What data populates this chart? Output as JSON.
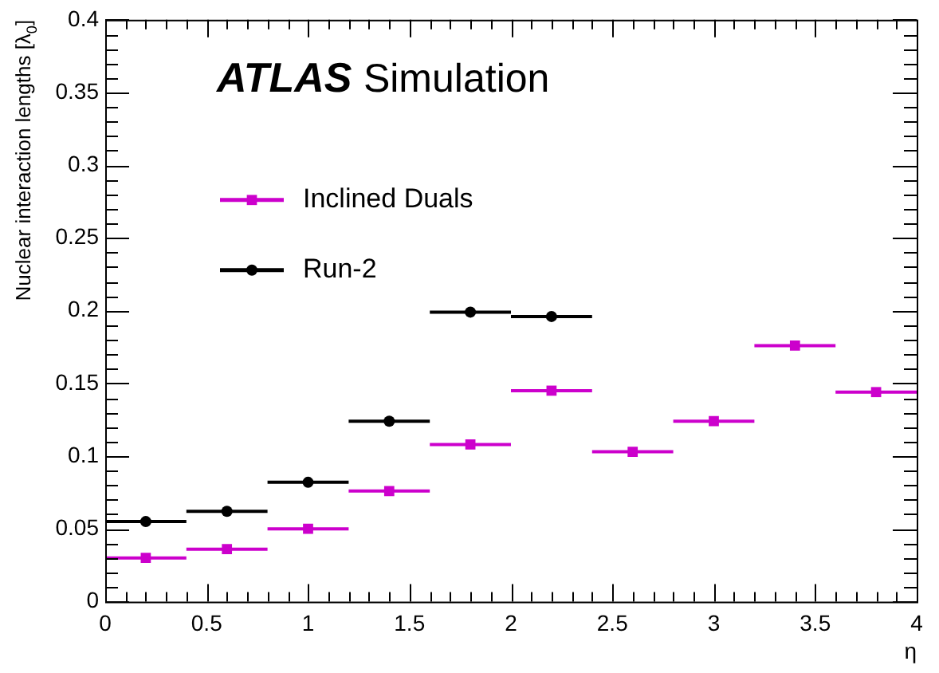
{
  "chart_data": {
    "type": "scatter",
    "xlabel": "η",
    "ylabel": "Nuclear interaction lengths [λ$_{0}$]",
    "annotations": [
      "ATLAS Simulation"
    ],
    "xlim": [
      0,
      4
    ],
    "xticks": [
      0,
      0.5,
      1,
      1.5,
      2,
      2.5,
      3,
      3.5,
      4
    ],
    "ylim": [
      0,
      0.4
    ],
    "yticks": [
      0,
      0.05,
      0.1,
      0.15,
      0.2,
      0.25,
      0.3,
      0.35,
      0.4
    ],
    "legend": "top left",
    "grid": false,
    "series": [
      {
        "name": "Inclined Duals",
        "color": "#cc00cc",
        "marker": "square",
        "x": [
          0.2,
          0.6,
          1.0,
          1.4,
          1.8,
          2.2,
          2.6,
          3.0,
          3.4,
          3.8
        ],
        "values": [
          0.03,
          0.036,
          0.05,
          0.076,
          0.108,
          0.145,
          0.103,
          0.124,
          0.176,
          0.144
        ],
        "xerrors": [
          0.2,
          0.2,
          0.2,
          0.2,
          0.2,
          0.2,
          0.2,
          0.2,
          0.2,
          0.2
        ]
      },
      {
        "name": "Run-2",
        "color": "#000000",
        "marker": "circle",
        "x": [
          0.2,
          0.6,
          1.0,
          1.4,
          1.8,
          2.2
        ],
        "values": [
          0.055,
          0.062,
          0.082,
          0.124,
          0.199,
          0.196
        ],
        "xerrors": [
          0.2,
          0.2,
          0.2,
          0.2,
          0.2,
          0.2
        ]
      }
    ]
  }
}
